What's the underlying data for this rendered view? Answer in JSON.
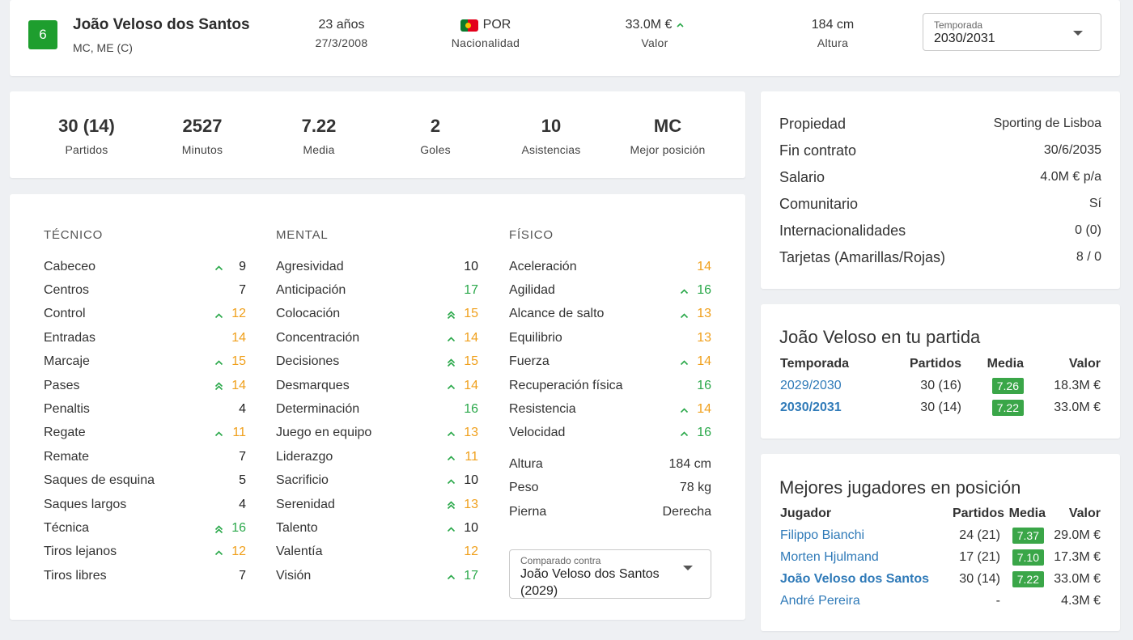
{
  "header": {
    "number": "6",
    "name": "João Veloso dos Santos",
    "positions": "MC, ME (C)",
    "age": "23 años",
    "birthdate": "27/3/2008",
    "nationality_code": "POR",
    "nationality_label": "Nacionalidad",
    "value": "33.0M €",
    "value_label": "Valor",
    "height": "184 cm",
    "height_label": "Altura",
    "season_select": {
      "label": "Temporada",
      "value": "2030/2031"
    }
  },
  "stats": [
    {
      "value": "30 (14)",
      "label": "Partidos"
    },
    {
      "value": "2527",
      "label": "Minutos"
    },
    {
      "value": "7.22",
      "label": "Media"
    },
    {
      "value": "2",
      "label": "Goles"
    },
    {
      "value": "10",
      "label": "Asistencias"
    },
    {
      "value": "MC",
      "label": "Mejor posición"
    }
  ],
  "attributes": {
    "colors": {
      "black": "#222222",
      "green": "#2aa84a",
      "orange": "#f0a01c"
    },
    "tecnico": {
      "title": "TÉCNICO",
      "items": [
        {
          "name": "Cabeceo",
          "value": "9",
          "arrow": "single",
          "color": "black"
        },
        {
          "name": "Centros",
          "value": "7",
          "arrow": "none",
          "color": "black"
        },
        {
          "name": "Control",
          "value": "12",
          "arrow": "single",
          "color": "orange"
        },
        {
          "name": "Entradas",
          "value": "14",
          "arrow": "none",
          "color": "orange"
        },
        {
          "name": "Marcaje",
          "value": "15",
          "arrow": "single",
          "color": "orange"
        },
        {
          "name": "Pases",
          "value": "14",
          "arrow": "double",
          "color": "orange"
        },
        {
          "name": "Penaltis",
          "value": "4",
          "arrow": "none",
          "color": "black"
        },
        {
          "name": "Regate",
          "value": "11",
          "arrow": "single",
          "color": "orange"
        },
        {
          "name": "Remate",
          "value": "7",
          "arrow": "none",
          "color": "black"
        },
        {
          "name": "Saques de esquina",
          "value": "5",
          "arrow": "none",
          "color": "black"
        },
        {
          "name": "Saques largos",
          "value": "4",
          "arrow": "none",
          "color": "black"
        },
        {
          "name": "Técnica",
          "value": "16",
          "arrow": "double",
          "color": "green"
        },
        {
          "name": "Tiros lejanos",
          "value": "12",
          "arrow": "single",
          "color": "orange"
        },
        {
          "name": "Tiros libres",
          "value": "7",
          "arrow": "none",
          "color": "black"
        }
      ]
    },
    "mental": {
      "title": "MENTAL",
      "items": [
        {
          "name": "Agresividad",
          "value": "10",
          "arrow": "none",
          "color": "black"
        },
        {
          "name": "Anticipación",
          "value": "17",
          "arrow": "none",
          "color": "green"
        },
        {
          "name": "Colocación",
          "value": "15",
          "arrow": "double",
          "color": "orange"
        },
        {
          "name": "Concentración",
          "value": "14",
          "arrow": "single",
          "color": "orange"
        },
        {
          "name": "Decisiones",
          "value": "15",
          "arrow": "double",
          "color": "orange"
        },
        {
          "name": "Desmarques",
          "value": "14",
          "arrow": "single",
          "color": "orange"
        },
        {
          "name": "Determinación",
          "value": "16",
          "arrow": "none",
          "color": "green"
        },
        {
          "name": "Juego en equipo",
          "value": "13",
          "arrow": "single",
          "color": "orange"
        },
        {
          "name": "Liderazgo",
          "value": "11",
          "arrow": "single",
          "color": "orange"
        },
        {
          "name": "Sacrificio",
          "value": "10",
          "arrow": "single",
          "color": "black"
        },
        {
          "name": "Serenidad",
          "value": "13",
          "arrow": "double",
          "color": "orange"
        },
        {
          "name": "Talento",
          "value": "10",
          "arrow": "single",
          "color": "black"
        },
        {
          "name": "Valentía",
          "value": "12",
          "arrow": "none",
          "color": "orange"
        },
        {
          "name": "Visión",
          "value": "17",
          "arrow": "single",
          "color": "green"
        }
      ]
    },
    "fisico": {
      "title": "FÍSICO",
      "items": [
        {
          "name": "Aceleración",
          "value": "14",
          "arrow": "none",
          "color": "orange"
        },
        {
          "name": "Agilidad",
          "value": "16",
          "arrow": "single",
          "color": "green"
        },
        {
          "name": "Alcance de salto",
          "value": "13",
          "arrow": "single",
          "color": "orange"
        },
        {
          "name": "Equilibrio",
          "value": "13",
          "arrow": "none",
          "color": "orange"
        },
        {
          "name": "Fuerza",
          "value": "14",
          "arrow": "single",
          "color": "orange"
        },
        {
          "name": "Recuperación física",
          "value": "16",
          "arrow": "none",
          "color": "green"
        },
        {
          "name": "Resistencia",
          "value": "14",
          "arrow": "single",
          "color": "orange"
        },
        {
          "name": "Velocidad",
          "value": "16",
          "arrow": "single",
          "color": "green"
        }
      ],
      "profile": [
        {
          "name": "Altura",
          "value": "184 cm"
        },
        {
          "name": "Peso",
          "value": "78 kg"
        },
        {
          "name": "Pierna",
          "value": "Derecha"
        }
      ]
    },
    "compare_select": {
      "label": "Comparado contra",
      "value": "João Veloso dos Santos (2029)"
    }
  },
  "contract": [
    {
      "key": "Propiedad",
      "value": "Sporting de Lisboa"
    },
    {
      "key": "Fin contrato",
      "value": "30/6/2035"
    },
    {
      "key": "Salario",
      "value": "4.0M € p/a"
    },
    {
      "key": "Comunitario",
      "value": "Sí"
    },
    {
      "key": "Internacionalidades",
      "value": "0 (0)"
    },
    {
      "key": "Tarjetas (Amarillas/Rojas)",
      "value": "8 / 0"
    }
  ],
  "history": {
    "title": "João Veloso en tu partida",
    "headers": {
      "season": "Temporada",
      "matches": "Partidos",
      "rating": "Media",
      "value": "Valor"
    },
    "rows": [
      {
        "season": "2029/2030",
        "matches": "30 (16)",
        "rating": "7.26",
        "value": "18.3M €",
        "current": false
      },
      {
        "season": "2030/2031",
        "matches": "30 (14)",
        "rating": "7.22",
        "value": "33.0M €",
        "current": true
      }
    ]
  },
  "best": {
    "title": "Mejores jugadores en posición",
    "headers": {
      "player": "Jugador",
      "matches": "Partidos",
      "rating": "Media",
      "value": "Valor"
    },
    "rows": [
      {
        "player": "Filippo Bianchi",
        "matches": "24 (21)",
        "rating": "7.37",
        "value": "29.0M €",
        "current": false
      },
      {
        "player": "Morten Hjulmand",
        "matches": "17 (21)",
        "rating": "7.10",
        "value": "17.3M €",
        "current": false
      },
      {
        "player": "João Veloso dos Santos",
        "matches": "30 (14)",
        "rating": "7.22",
        "value": "33.0M €",
        "current": true
      },
      {
        "player": "André Pereira",
        "matches": "-",
        "rating": "",
        "value": "4.3M €",
        "current": false
      }
    ]
  }
}
